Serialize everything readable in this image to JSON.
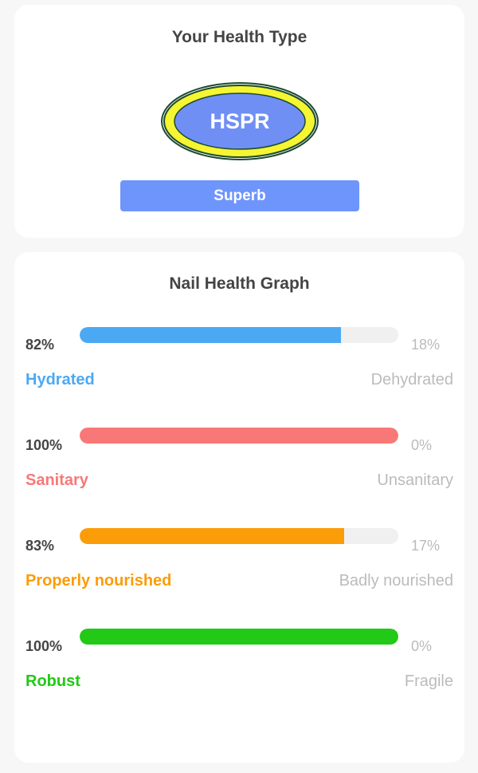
{
  "health_type": {
    "title": "Your Health Type",
    "code": "HSPR",
    "rating": "Superb",
    "colors": {
      "badge_inner": "#6f8ff5",
      "badge_ring": "#f5f531",
      "badge_outline": "#1c4a2e",
      "rating_bg": "#6e95fb"
    }
  },
  "graph": {
    "title": "Nail Health Graph",
    "metrics": [
      {
        "left_pct": "82%",
        "right_pct": "18%",
        "value": 82,
        "left_label": "Hydrated",
        "right_label": "Dehydrated",
        "color": "#4ba9f4"
      },
      {
        "left_pct": "100%",
        "right_pct": "0%",
        "value": 100,
        "left_label": "Sanitary",
        "right_label": "Unsanitary",
        "color": "#f87878"
      },
      {
        "left_pct": "83%",
        "right_pct": "17%",
        "value": 83,
        "left_label": "Properly nourished",
        "right_label": "Badly nourished",
        "color": "#fb9c09"
      },
      {
        "left_pct": "100%",
        "right_pct": "0%",
        "value": 100,
        "left_label": "Robust",
        "right_label": "Fragile",
        "color": "#22c916"
      }
    ]
  }
}
